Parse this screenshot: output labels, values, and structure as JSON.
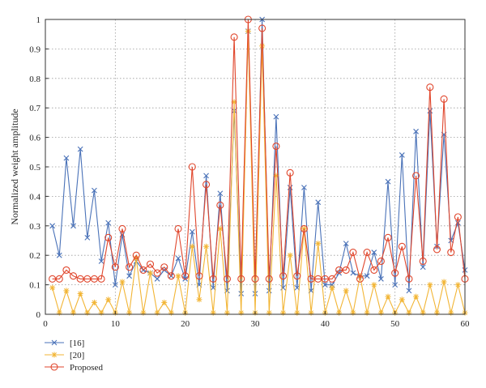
{
  "chart_data": {
    "type": "line",
    "title": "",
    "xlabel": "",
    "ylabel": "Normalized weight amplitude",
    "xlim": [
      0,
      60
    ],
    "ylim": [
      0,
      1
    ],
    "x_ticks": [
      0,
      10,
      20,
      30,
      40,
      50,
      60
    ],
    "y_ticks": [
      0,
      0.1,
      0.2,
      0.3,
      0.4,
      0.5,
      0.6,
      0.7,
      0.8,
      0.9,
      1
    ],
    "grid": true,
    "legend_position": "bottom-left, outside",
    "series": [
      {
        "name": "[16]",
        "color": "#4a72b8",
        "marker": "x",
        "x": [
          1,
          2,
          3,
          4,
          5,
          6,
          7,
          8,
          9,
          10,
          11,
          12,
          13,
          14,
          15,
          16,
          17,
          18,
          19,
          20,
          21,
          22,
          23,
          24,
          25,
          26,
          27,
          28,
          29,
          30,
          31,
          32,
          33,
          34,
          35,
          36,
          37,
          38,
          39,
          40,
          41,
          42,
          43,
          44,
          45,
          46,
          47,
          48,
          49,
          50,
          51,
          52,
          53,
          54,
          55,
          56,
          57,
          58,
          59,
          60
        ],
        "values": [
          0.3,
          0.2,
          0.53,
          0.3,
          0.56,
          0.26,
          0.42,
          0.18,
          0.31,
          0.1,
          0.27,
          0.13,
          0.18,
          0.15,
          0.14,
          0.12,
          0.15,
          0.13,
          0.19,
          0.12,
          0.28,
          0.1,
          0.47,
          0.09,
          0.41,
          0.08,
          0.69,
          0.07,
          0.96,
          0.07,
          1.0,
          0.08,
          0.67,
          0.09,
          0.43,
          0.09,
          0.43,
          0.08,
          0.38,
          0.1,
          0.1,
          0.14,
          0.24,
          0.14,
          0.13,
          0.13,
          0.21,
          0.12,
          0.45,
          0.1,
          0.54,
          0.08,
          0.62,
          0.16,
          0.69,
          0.23,
          0.61,
          0.25,
          0.31,
          0.15
        ]
      },
      {
        "name": "[20]",
        "color": "#f2b535",
        "marker": "star",
        "x": [
          1,
          2,
          3,
          4,
          5,
          6,
          7,
          8,
          9,
          10,
          11,
          12,
          13,
          14,
          15,
          16,
          17,
          18,
          19,
          20,
          21,
          22,
          23,
          24,
          25,
          26,
          27,
          28,
          29,
          30,
          31,
          32,
          33,
          34,
          35,
          36,
          37,
          38,
          39,
          40,
          41,
          42,
          43,
          44,
          45,
          46,
          47,
          48,
          49,
          50,
          51,
          52,
          53,
          54,
          55,
          56,
          57,
          58,
          59,
          60
        ],
        "values": [
          0.09,
          0.005,
          0.08,
          0.005,
          0.07,
          0.005,
          0.04,
          0.005,
          0.05,
          0.005,
          0.11,
          0.005,
          0.19,
          0.005,
          0.14,
          0.005,
          0.04,
          0.005,
          0.13,
          0.005,
          0.23,
          0.05,
          0.23,
          0.005,
          0.29,
          0.005,
          0.72,
          0.005,
          0.96,
          0.005,
          0.91,
          0.005,
          0.47,
          0.005,
          0.2,
          0.005,
          0.29,
          0.005,
          0.24,
          0.005,
          0.09,
          0.005,
          0.08,
          0.005,
          0.13,
          0.005,
          0.1,
          0.005,
          0.06,
          0.005,
          0.05,
          0.005,
          0.06,
          0.005,
          0.1,
          0.005,
          0.11,
          0.005,
          0.1,
          0.005
        ]
      },
      {
        "name": "Proposed",
        "color": "#e0462c",
        "marker": "circle",
        "x": [
          1,
          2,
          3,
          4,
          5,
          6,
          7,
          8,
          9,
          10,
          11,
          12,
          13,
          14,
          15,
          16,
          17,
          18,
          19,
          20,
          21,
          22,
          23,
          24,
          25,
          26,
          27,
          28,
          29,
          30,
          31,
          32,
          33,
          34,
          35,
          36,
          37,
          38,
          39,
          40,
          41,
          42,
          43,
          44,
          45,
          46,
          47,
          48,
          49,
          50,
          51,
          52,
          53,
          54,
          55,
          56,
          57,
          58,
          59,
          60
        ],
        "values": [
          0.12,
          0.12,
          0.15,
          0.13,
          0.12,
          0.12,
          0.12,
          0.12,
          0.26,
          0.16,
          0.29,
          0.16,
          0.2,
          0.15,
          0.17,
          0.14,
          0.16,
          0.13,
          0.29,
          0.13,
          0.5,
          0.13,
          0.44,
          0.12,
          0.37,
          0.12,
          0.94,
          0.12,
          1.0,
          0.12,
          0.97,
          0.12,
          0.57,
          0.13,
          0.48,
          0.13,
          0.29,
          0.12,
          0.12,
          0.12,
          0.12,
          0.15,
          0.15,
          0.21,
          0.12,
          0.21,
          0.15,
          0.18,
          0.26,
          0.14,
          0.23,
          0.12,
          0.47,
          0.18,
          0.77,
          0.22,
          0.73,
          0.21,
          0.33,
          0.12
        ]
      }
    ]
  }
}
